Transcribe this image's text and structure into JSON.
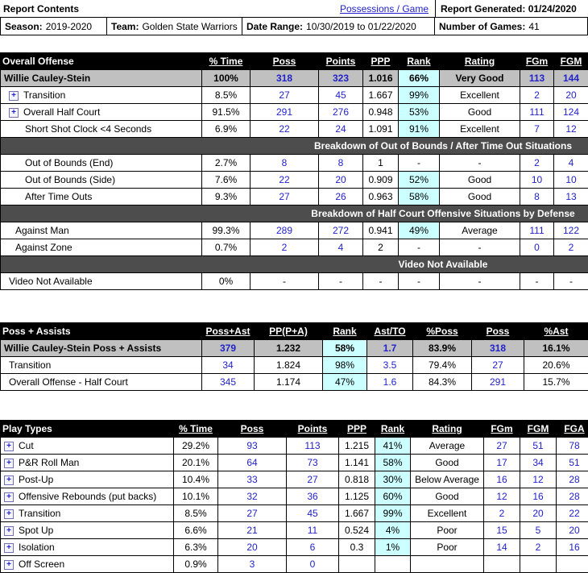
{
  "colors": {
    "link_blue": "#2222cc",
    "rank_highlight": "#ccffff",
    "summary_row_bg": "#c0c0c0",
    "section_row_bg": "#4d4d4d",
    "table_header_bg": "#000000",
    "table_header_text": "#ffffff",
    "border": "#000000"
  },
  "icons": {
    "expand": "+"
  },
  "report_header": {
    "title": "Report Contents",
    "view_link": "Possessions / Game",
    "generated_label": "Report Generated:",
    "generated_value": "01/24/2020",
    "fields": [
      {
        "label": "Season:",
        "value": "2019-2020"
      },
      {
        "label": "Team:",
        "value": "Golden State Warriors"
      },
      {
        "label": "Date Range:",
        "value": "10/30/2019 to 01/22/2020"
      },
      {
        "label": "Number of Games:",
        "value": "41"
      }
    ]
  },
  "tables": [
    {
      "id": "overall-offense",
      "title": "Overall Offense",
      "columns": [
        "% Time",
        "Poss",
        "Points",
        "PPP",
        "Rank",
        "Rating",
        "FGm",
        "FGM"
      ],
      "blue_cols": [
        1,
        2,
        6,
        7
      ],
      "rank_col": 4,
      "rows": [
        {
          "t": "d",
          "style": "summary",
          "indent": 0,
          "label": "Willie Cauley-Stein",
          "cells": [
            "100%",
            "318",
            "323",
            "1.016",
            "66%",
            "Very Good",
            "113",
            "144"
          ]
        },
        {
          "t": "d",
          "indent": 1,
          "expand": true,
          "label": "Transition",
          "cells": [
            "8.5%",
            "27",
            "45",
            "1.667",
            "99%",
            "Excellent",
            "2",
            "20"
          ]
        },
        {
          "t": "d",
          "indent": 1,
          "expand": true,
          "label": "Overall Half Court",
          "cells": [
            "91.5%",
            "291",
            "276",
            "0.948",
            "53%",
            "Good",
            "111",
            "124"
          ]
        },
        {
          "t": "d",
          "indent": 3,
          "label": "Short Shot Clock <4 Seconds",
          "cells": [
            "6.9%",
            "22",
            "24",
            "1.091",
            "91%",
            "Excellent",
            "7",
            "12"
          ]
        },
        {
          "t": "s",
          "label": "Breakdown of Out of Bounds / After Time Out Situations"
        },
        {
          "t": "d",
          "indent": 3,
          "label": "Out of Bounds (End)",
          "cells": [
            "2.7%",
            "8",
            "8",
            "1",
            "-",
            "-",
            "2",
            "4"
          ]
        },
        {
          "t": "d",
          "indent": 3,
          "label": "Out of Bounds (Side)",
          "cells": [
            "7.6%",
            "22",
            "20",
            "0.909",
            "52%",
            "Good",
            "10",
            "10"
          ]
        },
        {
          "t": "d",
          "indent": 3,
          "label": "After Time Outs",
          "cells": [
            "9.3%",
            "27",
            "26",
            "0.963",
            "58%",
            "Good",
            "8",
            "13"
          ]
        },
        {
          "t": "s",
          "label": "Breakdown of Half Court Offensive Situations by Defense"
        },
        {
          "t": "d",
          "indent": 2,
          "label": "Against Man",
          "cells": [
            "99.3%",
            "289",
            "272",
            "0.941",
            "49%",
            "Average",
            "111",
            "122"
          ]
        },
        {
          "t": "d",
          "indent": 2,
          "label": "Against Zone",
          "cells": [
            "0.7%",
            "2",
            "4",
            "2",
            "-",
            "-",
            "0",
            "2"
          ]
        },
        {
          "t": "s",
          "label": "Video Not Available"
        },
        {
          "t": "d",
          "indent": 1,
          "label": "Video Not Available",
          "cells": [
            "0%",
            "-",
            "-",
            "-",
            "-",
            "-",
            "-",
            "-"
          ]
        }
      ]
    },
    {
      "id": "poss-assists",
      "title": "Poss + Assists",
      "columns": [
        "Poss+Ast",
        "PP(P+A)",
        "Rank",
        "Ast/TO",
        "%Poss",
        "Poss",
        "%Ast"
      ],
      "blue_cols": [
        0,
        3,
        5
      ],
      "rank_col": 2,
      "rows": [
        {
          "t": "d",
          "style": "summary",
          "indent": 0,
          "label": "Willie Cauley-Stein Poss + Assists",
          "cells": [
            "379",
            "1.232",
            "58%",
            "1.7",
            "83.9%",
            "318",
            "16.1%"
          ]
        },
        {
          "t": "d",
          "indent": 1,
          "label": "Transition",
          "cells": [
            "34",
            "1.824",
            "98%",
            "3.5",
            "79.4%",
            "27",
            "20.6%"
          ]
        },
        {
          "t": "d",
          "indent": 1,
          "label": "Overall Offense - Half Court",
          "cells": [
            "345",
            "1.174",
            "47%",
            "1.6",
            "84.3%",
            "291",
            "15.7%"
          ]
        }
      ]
    },
    {
      "id": "play-types",
      "title": "Play Types",
      "columns": [
        "% Time",
        "Poss",
        "Points",
        "PPP",
        "Rank",
        "Rating",
        "FGm",
        "FGM",
        "FGA"
      ],
      "blue_cols": [
        1,
        2,
        6,
        7,
        8
      ],
      "rank_col": 4,
      "rows": [
        {
          "t": "d",
          "indent": 0,
          "expand": true,
          "label": "Cut",
          "cells": [
            "29.2%",
            "93",
            "113",
            "1.215",
            "41%",
            "Average",
            "27",
            "51",
            "78"
          ]
        },
        {
          "t": "d",
          "indent": 0,
          "expand": true,
          "label": "P&R Roll Man",
          "cells": [
            "20.1%",
            "64",
            "73",
            "1.141",
            "58%",
            "Good",
            "17",
            "34",
            "51"
          ]
        },
        {
          "t": "d",
          "indent": 0,
          "expand": true,
          "label": "Post-Up",
          "cells": [
            "10.4%",
            "33",
            "27",
            "0.818",
            "30%",
            "Below Average",
            "16",
            "12",
            "28"
          ]
        },
        {
          "t": "d",
          "indent": 0,
          "expand": true,
          "label": "Offensive Rebounds (put backs)",
          "cells": [
            "10.1%",
            "32",
            "36",
            "1.125",
            "60%",
            "Good",
            "12",
            "16",
            "28"
          ]
        },
        {
          "t": "d",
          "indent": 0,
          "expand": true,
          "label": "Transition",
          "cells": [
            "8.5%",
            "27",
            "45",
            "1.667",
            "99%",
            "Excellent",
            "2",
            "20",
            "22"
          ]
        },
        {
          "t": "d",
          "indent": 0,
          "expand": true,
          "label": "Spot Up",
          "cells": [
            "6.6%",
            "21",
            "11",
            "0.524",
            "4%",
            "Poor",
            "15",
            "5",
            "20"
          ]
        },
        {
          "t": "d",
          "indent": 0,
          "expand": true,
          "label": "Isolation",
          "cells": [
            "6.3%",
            "20",
            "6",
            "0.3",
            "1%",
            "Poor",
            "14",
            "2",
            "16"
          ]
        },
        {
          "t": "d",
          "indent": 0,
          "expand": true,
          "label": "Off Screen",
          "cells": [
            "0.9%",
            "3",
            "0",
            "",
            "",
            "",
            "",
            "",
            ""
          ]
        }
      ]
    }
  ]
}
